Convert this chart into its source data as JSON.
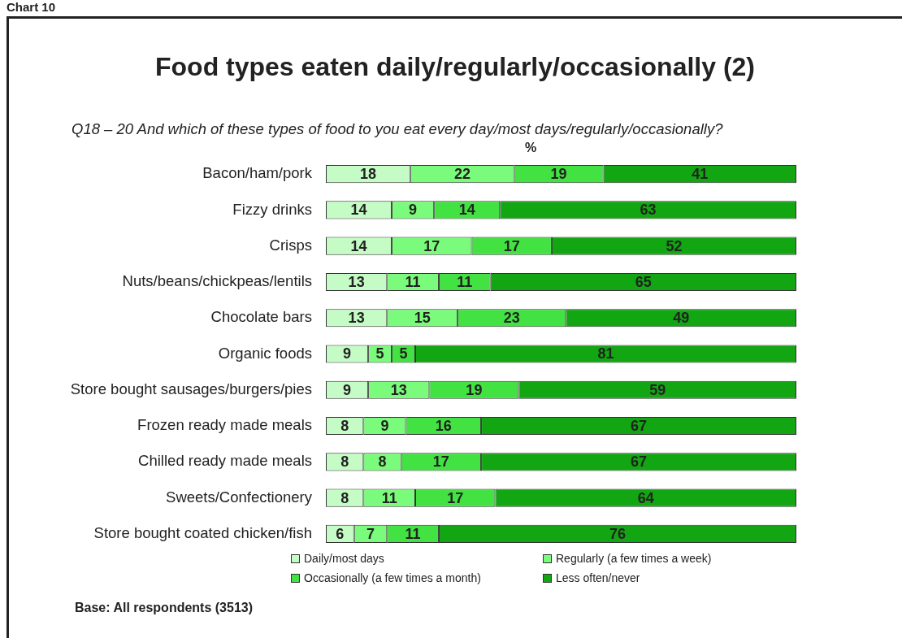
{
  "chart_data": {
    "type": "bar",
    "orientation": "horizontal",
    "stacked": true,
    "data_labels": true,
    "legend": "bottom",
    "tick_labels": "y",
    "title": "Food types eaten daily/regularly/occasionally (2)",
    "subtitle": "Q18 – 20 And which of these types of food to you eat every day/most days/regularly/occasionally?",
    "xlabel": "%",
    "annotations": [
      "Chart 10",
      "Base: All respondents (3513)"
    ],
    "categories": [
      "Bacon/ham/pork",
      "Fizzy drinks",
      "Crisps",
      "Nuts/beans/chickpeas/lentils",
      "Chocolate bars",
      "Organic foods",
      "Store bought sausages/burgers/pies",
      "Frozen ready made meals",
      "Chilled ready made meals",
      "Sweets/Confectionery",
      "Store bought coated chicken/fish"
    ],
    "series": [
      {
        "name": "Daily/most days",
        "color": "#c5fbc5",
        "values": [
          18,
          14,
          14,
          13,
          13,
          9,
          9,
          8,
          8,
          8,
          6
        ]
      },
      {
        "name": "Regularly (a few times a week)",
        "color": "#7bfb7b",
        "values": [
          22,
          9,
          17,
          11,
          15,
          5,
          13,
          9,
          8,
          11,
          7
        ]
      },
      {
        "name": "Occasionally (a few times a month)",
        "color": "#42e242",
        "values": [
          19,
          14,
          17,
          11,
          23,
          5,
          19,
          16,
          17,
          17,
          11
        ]
      },
      {
        "name": "Less often/never",
        "color": "#12a612",
        "values": [
          41,
          63,
          52,
          65,
          49,
          81,
          59,
          67,
          67,
          64,
          76
        ]
      }
    ]
  }
}
